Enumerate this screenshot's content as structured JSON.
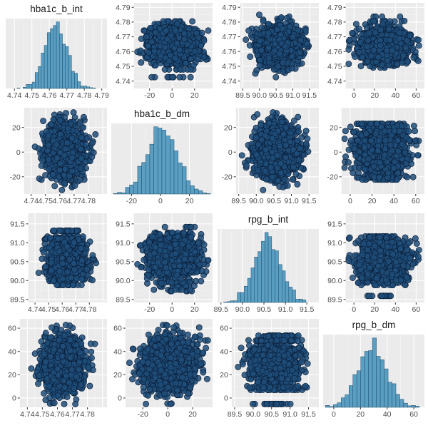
{
  "chart_data": {
    "type": "scatter",
    "layout": "pairs-matrix",
    "colors": {
      "point_fill": "#1f4e79",
      "point_edge": "#0b1f3a",
      "bar_fill": "#5a9ec2",
      "bar_edge": "#1d4c6a",
      "panel_background": "#ebebeb",
      "grid": "#ffffff"
    },
    "grid": true,
    "variables": [
      {
        "name": "hba1c_b_int",
        "mean": 4.764,
        "sd": 0.0065,
        "range": [
          4.735,
          4.793
        ],
        "ticks": [
          4.74,
          4.75,
          4.76,
          4.77,
          4.78,
          4.79
        ],
        "ticks_short": [
          4.74,
          4.75,
          4.76,
          4.77,
          4.78
        ],
        "tick_labels": [
          "4.74",
          "4.75",
          "4.76",
          "4.77",
          "4.78",
          "4.79"
        ]
      },
      {
        "name": "hba1c_b_dm",
        "mean": 1,
        "sd": 10.5,
        "range": [
          -34,
          36
        ],
        "ticks": [
          -20,
          0,
          20
        ],
        "tick_labels": [
          "-20",
          "0",
          "20"
        ]
      },
      {
        "name": "rpg_b_int",
        "mean": 90.6,
        "sd": 0.3,
        "range": [
          89.42,
          91.78
        ],
        "ticks": [
          89.5,
          90.0,
          90.5,
          91.0,
          91.5
        ],
        "tick_labels": [
          "89.5",
          "90.0",
          "90.5",
          "91.0",
          "91.5"
        ]
      },
      {
        "name": "rpg_b_dm",
        "mean": 29,
        "sd": 11,
        "range": [
          -8,
          68
        ],
        "ticks": [
          0,
          20,
          40,
          60
        ],
        "tick_labels": [
          "0",
          "20",
          "40",
          "60"
        ]
      }
    ],
    "scatter": {
      "points_per_panel": 1500,
      "correlation": 0
    },
    "histogram": {
      "bins": 30
    }
  }
}
